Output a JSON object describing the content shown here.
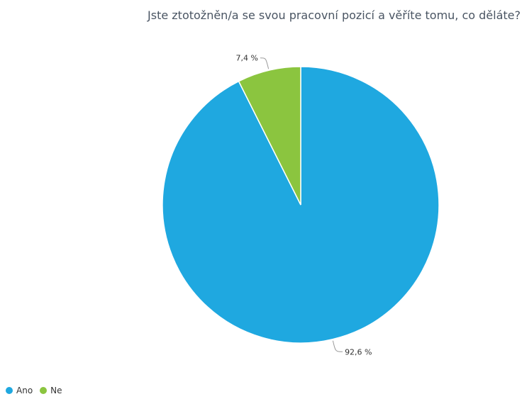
{
  "chart_data": {
    "type": "pie",
    "title": "Jste ztotožněn/a se svou pracovní pozicí a věříte tomu, co děláte?",
    "categories": [
      "Ano",
      "Ne"
    ],
    "values": [
      92.6,
      7.4
    ],
    "data_labels": [
      "92,6 %",
      "7,4 %"
    ],
    "colors": [
      "#1fa8e0",
      "#8bc53f"
    ],
    "legend_position": "bottom-left"
  }
}
